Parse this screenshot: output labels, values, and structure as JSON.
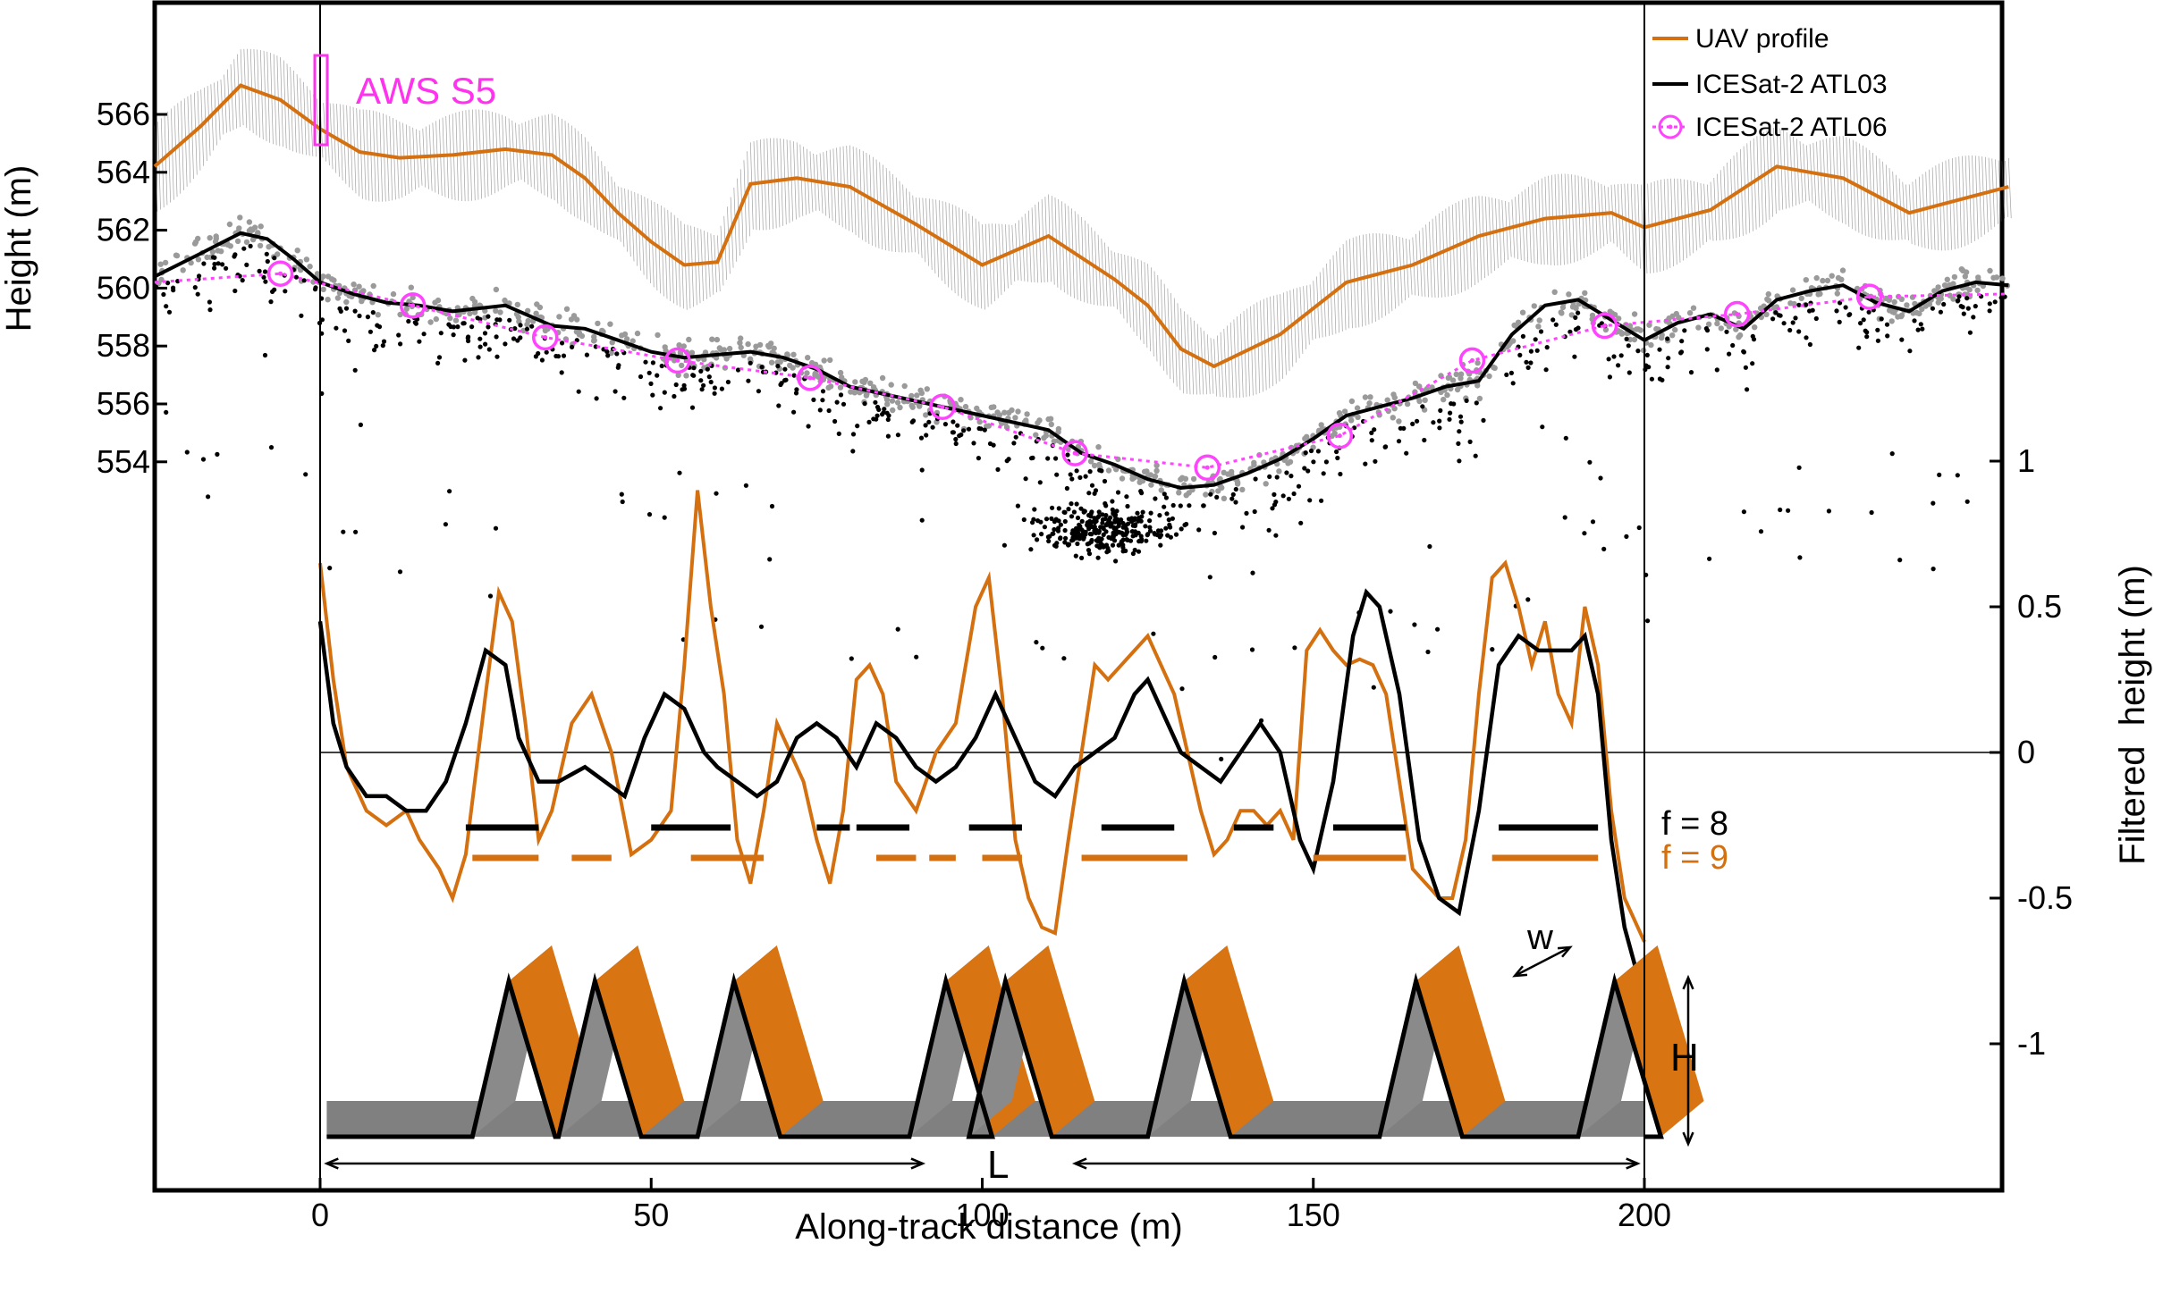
{
  "chart_data": [
    {
      "type": "scatter",
      "panel": "height profile",
      "xlabel": "Along-track distance (m)",
      "ylabel": "Height (m)",
      "xlim": [
        -25,
        255
      ],
      "ylim": [
        538,
        569
      ],
      "x_ticks": [
        0,
        50,
        100,
        150,
        200
      ],
      "y_ticks": [
        554,
        556,
        558,
        560,
        562,
        564,
        566
      ],
      "legend": {
        "placement": "top-right",
        "entries": [
          "UAV profile",
          "ICESat-2 ATL03",
          "ICESat-2 ATL06"
        ]
      },
      "annotation": "AWS S5",
      "series": [
        {
          "name": "UAV profile",
          "color": "#d4700f",
          "x": [
            -25,
            -18,
            -12,
            -6,
            0,
            6,
            12,
            20,
            28,
            35,
            40,
            45,
            50,
            55,
            60,
            65,
            72,
            80,
            90,
            100,
            110,
            120,
            125,
            130,
            135,
            145,
            155,
            165,
            175,
            185,
            195,
            200,
            210,
            220,
            230,
            240,
            250,
            255
          ],
          "y": [
            564.2,
            565.6,
            567.0,
            566.5,
            565.5,
            564.7,
            564.5,
            564.6,
            564.8,
            564.6,
            563.8,
            562.6,
            561.6,
            560.8,
            560.9,
            563.6,
            563.8,
            563.5,
            562.2,
            560.8,
            561.8,
            560.3,
            559.4,
            557.9,
            557.3,
            558.4,
            560.2,
            560.8,
            561.8,
            562.4,
            562.6,
            562.1,
            562.7,
            564.2,
            563.8,
            562.6,
            563.2,
            563.5
          ]
        },
        {
          "name": "ICESat-2 ATL03",
          "color": "#000000",
          "x": [
            -25,
            -18,
            -12,
            -8,
            -4,
            0,
            5,
            10,
            15,
            20,
            28,
            35,
            40,
            45,
            50,
            55,
            60,
            65,
            70,
            75,
            80,
            90,
            100,
            110,
            115,
            120,
            125,
            130,
            135,
            140,
            145,
            150,
            155,
            160,
            165,
            170,
            175,
            180,
            185,
            190,
            195,
            200,
            205,
            210,
            215,
            220,
            225,
            230,
            235,
            240,
            245,
            250,
            255
          ],
          "y": [
            560.4,
            561.2,
            561.9,
            561.7,
            561.0,
            560.2,
            559.8,
            559.5,
            559.4,
            559.2,
            559.4,
            558.7,
            558.6,
            558.2,
            557.8,
            557.6,
            557.7,
            557.8,
            557.6,
            557.2,
            556.6,
            556.1,
            555.6,
            555.1,
            554.3,
            553.9,
            553.4,
            553.1,
            553.2,
            553.6,
            554.1,
            554.8,
            555.6,
            555.9,
            556.2,
            556.6,
            556.8,
            558.4,
            559.4,
            559.6,
            558.9,
            558.2,
            558.8,
            559.1,
            558.6,
            559.6,
            559.9,
            560.1,
            559.5,
            559.2,
            559.9,
            560.2,
            560.1
          ]
        },
        {
          "name": "ICESat-2 ATL06",
          "color": "#ff44ff",
          "x": [
            -25,
            -6,
            14,
            34,
            54,
            74,
            94,
            114,
            134,
            154,
            174,
            194,
            214,
            234,
            255
          ],
          "y": [
            560.2,
            560.5,
            559.4,
            558.3,
            557.5,
            556.9,
            555.9,
            554.3,
            553.8,
            554.9,
            557.5,
            558.7,
            559.1,
            559.7,
            559.8
          ]
        }
      ]
    },
    {
      "type": "line",
      "panel": "filtered height",
      "xlabel": "Along-track distance (m)",
      "ylabel": "Filtered  height (m)",
      "xlim": [
        0,
        200
      ],
      "ylim": [
        -1,
        1
      ],
      "y_ticks": [
        -1,
        -0.5,
        0,
        0.5,
        1
      ],
      "series": [
        {
          "name": "UAV profile",
          "color": "#d4700f",
          "x": [
            0,
            2,
            4,
            7,
            10,
            13,
            15,
            18,
            20,
            22,
            25,
            27,
            29,
            31,
            33,
            35,
            38,
            41,
            44,
            47,
            50,
            53,
            55,
            57,
            59,
            61,
            63,
            65,
            67,
            69,
            71,
            73,
            75,
            77,
            79,
            81,
            83,
            85,
            87,
            90,
            93,
            96,
            99,
            101,
            103,
            105,
            107,
            109,
            111,
            113,
            115,
            117,
            119,
            121,
            123,
            125,
            127,
            129,
            131,
            133,
            135,
            137,
            139,
            141,
            143,
            145,
            147,
            149,
            151,
            153,
            155,
            157,
            159,
            161,
            163,
            165,
            167,
            169,
            171,
            173,
            175,
            177,
            179,
            181,
            183,
            185,
            187,
            189,
            191,
            193,
            195,
            197,
            200
          ],
          "y": [
            0.65,
            0.25,
            -0.05,
            -0.2,
            -0.25,
            -0.2,
            -0.3,
            -0.4,
            -0.5,
            -0.35,
            0.2,
            0.55,
            0.45,
            0.1,
            -0.3,
            -0.2,
            0.1,
            0.2,
            0.0,
            -0.35,
            -0.3,
            -0.2,
            0.3,
            0.9,
            0.5,
            0.2,
            -0.3,
            -0.45,
            -0.2,
            0.1,
            0.0,
            -0.1,
            -0.3,
            -0.45,
            -0.2,
            0.25,
            0.3,
            0.2,
            -0.1,
            -0.2,
            0.0,
            0.1,
            0.5,
            0.6,
            0.2,
            -0.3,
            -0.5,
            -0.6,
            -0.62,
            -0.3,
            0.0,
            0.3,
            0.25,
            0.3,
            0.35,
            0.4,
            0.3,
            0.2,
            0.0,
            -0.2,
            -0.35,
            -0.3,
            -0.2,
            -0.2,
            -0.25,
            -0.2,
            -0.3,
            0.35,
            0.42,
            0.35,
            0.3,
            0.32,
            0.3,
            0.2,
            -0.1,
            -0.4,
            -0.45,
            -0.5,
            -0.5,
            -0.3,
            0.2,
            0.6,
            0.65,
            0.5,
            0.3,
            0.45,
            0.2,
            0.1,
            0.5,
            0.3,
            -0.2,
            -0.5,
            -0.65
          ]
        },
        {
          "name": "ICESat-2 ATL03",
          "color": "#000000",
          "x": [
            0,
            2,
            4,
            7,
            10,
            13,
            16,
            19,
            22,
            25,
            28,
            30,
            33,
            36,
            40,
            43,
            46,
            49,
            52,
            55,
            58,
            60,
            63,
            66,
            69,
            72,
            75,
            78,
            81,
            84,
            87,
            90,
            93,
            96,
            99,
            102,
            105,
            108,
            111,
            114,
            117,
            120,
            123,
            125,
            127,
            130,
            133,
            136,
            139,
            142,
            145,
            148,
            150,
            153,
            156,
            158,
            160,
            163,
            166,
            169,
            172,
            175,
            178,
            181,
            184,
            187,
            189,
            191,
            193,
            195,
            197,
            200
          ],
          "y": [
            0.45,
            0.1,
            -0.05,
            -0.15,
            -0.15,
            -0.2,
            -0.2,
            -0.1,
            0.1,
            0.35,
            0.3,
            0.05,
            -0.1,
            -0.1,
            -0.05,
            -0.1,
            -0.15,
            0.05,
            0.2,
            0.15,
            0.0,
            -0.05,
            -0.1,
            -0.15,
            -0.1,
            0.05,
            0.1,
            0.05,
            -0.05,
            0.1,
            0.05,
            -0.05,
            -0.1,
            -0.05,
            0.05,
            0.2,
            0.05,
            -0.1,
            -0.15,
            -0.05,
            0.0,
            0.05,
            0.2,
            0.25,
            0.15,
            0.0,
            -0.05,
            -0.1,
            0.0,
            0.1,
            0.0,
            -0.3,
            -0.4,
            -0.1,
            0.4,
            0.55,
            0.5,
            0.2,
            -0.3,
            -0.5,
            -0.55,
            -0.2,
            0.3,
            0.4,
            0.35,
            0.35,
            0.35,
            0.4,
            0.2,
            -0.3,
            -0.6,
            -0.85
          ]
        }
      ],
      "bar_segments": [
        {
          "label": "f = 8",
          "color": "#000000",
          "ranges": [
            [
              22,
              33
            ],
            [
              50,
              62
            ],
            [
              75,
              80
            ],
            [
              81,
              89
            ],
            [
              98,
              106
            ],
            [
              118,
              129
            ],
            [
              138,
              144
            ],
            [
              153,
              164
            ],
            [
              178,
              193
            ]
          ]
        },
        {
          "label": "f = 9",
          "color": "#d4700f",
          "ranges": [
            [
              23,
              33
            ],
            [
              38,
              44
            ],
            [
              56,
              67
            ],
            [
              84,
              90
            ],
            [
              92,
              96
            ],
            [
              100,
              106
            ],
            [
              115,
              131
            ],
            [
              150,
              164
            ],
            [
              177,
              193
            ]
          ]
        }
      ]
    }
  ],
  "schematic": {
    "labels": {
      "w": "w",
      "h": "H",
      "l": "L"
    },
    "dune_x": [
      26,
      39,
      60,
      92,
      101,
      128,
      163,
      193
    ]
  }
}
